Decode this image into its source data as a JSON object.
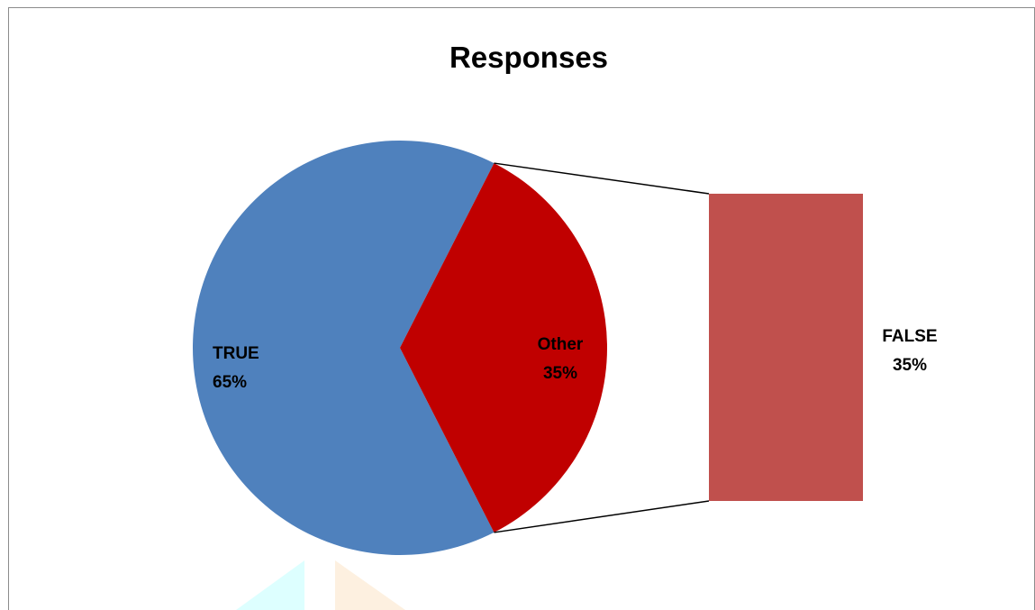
{
  "chart_data": {
    "type": "bar-of-pie",
    "title": "Responses",
    "pie": {
      "slices": [
        {
          "name": "TRUE",
          "value": 65,
          "label_line1": "TRUE",
          "label_line2": "65%",
          "color": "#4f81bd"
        },
        {
          "name": "Other",
          "value": 35,
          "label_line1": "Other",
          "label_line2": "35%",
          "color": "#c00000"
        }
      ]
    },
    "bar": {
      "segments": [
        {
          "name": "FALSE",
          "value": 35,
          "label_line1": "FALSE",
          "label_line2": "35%",
          "color": "#c0504d"
        }
      ]
    },
    "legend": "none",
    "grid": false
  }
}
